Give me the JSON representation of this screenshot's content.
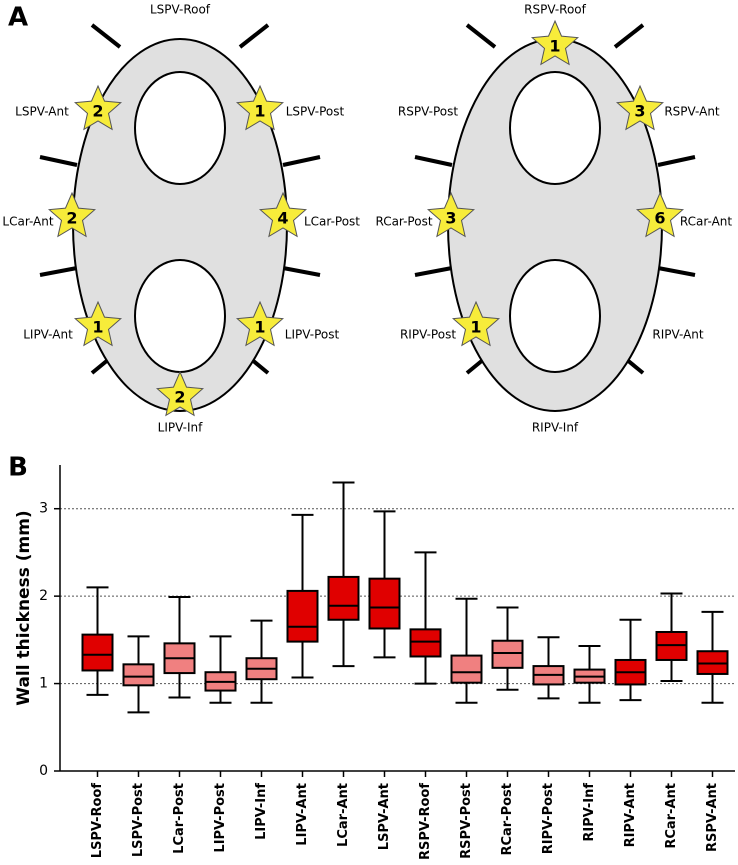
{
  "panel_a": {
    "label": "A",
    "left": [
      {
        "label": "LSPV-Roof"
      },
      {
        "label": "LSPV-Ant",
        "star": 2
      },
      {
        "label": "LSPV-Post",
        "star": 1
      },
      {
        "label": "LCar-Ant",
        "star": 2
      },
      {
        "label": "LCar-Post",
        "star": 4
      },
      {
        "label": "LIPV-Ant",
        "star": 1
      },
      {
        "label": "LIPV-Post",
        "star": 1
      },
      {
        "label": "LIPV-Inf",
        "star": 2
      }
    ],
    "right": [
      {
        "label": "RSPV-Roof",
        "star": 1
      },
      {
        "label": "RSPV-Post"
      },
      {
        "label": "RSPV-Ant",
        "star": 3
      },
      {
        "label": "RCar-Post",
        "star": 3
      },
      {
        "label": "RCar-Ant",
        "star": 6
      },
      {
        "label": "RIPV-Post",
        "star": 1
      },
      {
        "label": "RIPV-Ant"
      },
      {
        "label": "RIPV-Inf"
      }
    ]
  },
  "chart_data": {
    "type": "box",
    "panel_label": "B",
    "y_label": "Wall thickness (mm)",
    "categories": [
      "LSPV-Roof",
      "LSPV-Post",
      "LCar-Post",
      "LIPV-Post",
      "LIPV-Inf",
      "LIPV-Ant",
      "LCar-Ant",
      "LSPV-Ant",
      "RSPV-Roof",
      "RSPV-Post",
      "RCar-Post",
      "RIPV-Post",
      "RIPV-Inf",
      "RIPV-Ant",
      "RCar-Ant",
      "RSPV-Ant"
    ],
    "whisker_high": [
      2.1,
      1.54,
      1.99,
      1.54,
      1.72,
      2.93,
      3.3,
      2.97,
      2.5,
      1.97,
      1.87,
      1.53,
      1.43,
      1.73,
      2.03,
      1.82
    ],
    "q3": [
      1.56,
      1.22,
      1.46,
      1.13,
      1.29,
      2.06,
      2.22,
      2.2,
      1.62,
      1.32,
      1.49,
      1.2,
      1.16,
      1.27,
      1.59,
      1.37
    ],
    "median": [
      1.33,
      1.08,
      1.29,
      1.02,
      1.17,
      1.65,
      1.89,
      1.87,
      1.48,
      1.13,
      1.35,
      1.1,
      1.08,
      1.13,
      1.44,
      1.23
    ],
    "q1": [
      1.15,
      0.98,
      1.12,
      0.92,
      1.05,
      1.48,
      1.73,
      1.63,
      1.31,
      1.01,
      1.18,
      0.99,
      1.01,
      0.99,
      1.27,
      1.11
    ],
    "whisker_low": [
      0.87,
      0.67,
      0.84,
      0.78,
      0.78,
      1.07,
      1.2,
      1.3,
      1.0,
      0.78,
      0.93,
      0.83,
      0.78,
      0.81,
      1.03,
      0.78
    ],
    "colors": [
      "#e00000",
      "#f08080",
      "#f08080",
      "#f08080",
      "#f08080",
      "#e00000",
      "#e00000",
      "#e00000",
      "#e00000",
      "#f08080",
      "#f08080",
      "#f08080",
      "#f08080",
      "#e00000",
      "#e00000",
      "#e00000"
    ],
    "ylim": [
      0,
      3.5
    ],
    "yticks": [
      0,
      1,
      2,
      3
    ],
    "grid": true
  }
}
